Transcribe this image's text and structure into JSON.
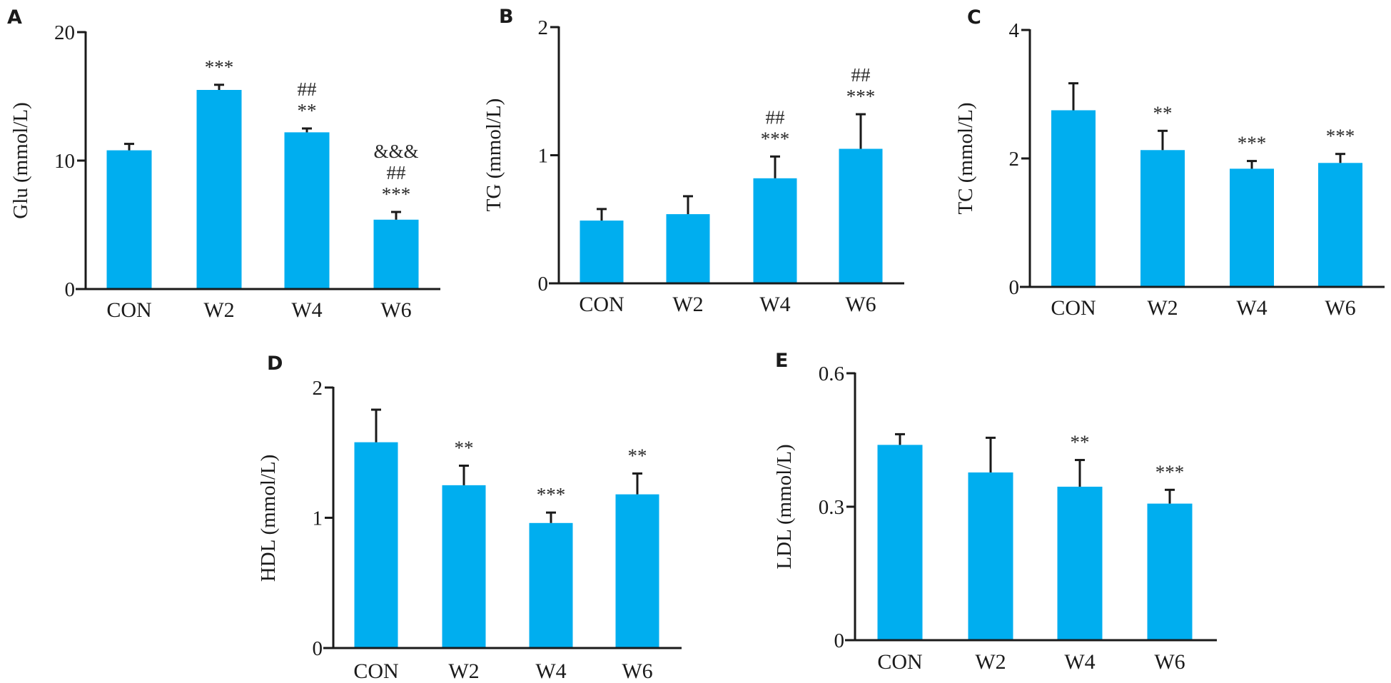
{
  "chart_data": [
    {
      "panel": "A",
      "type": "bar",
      "title": "",
      "xlabel": "",
      "ylabel": "Glu (mmol/L)",
      "categories": [
        "CON",
        "W2",
        "W4",
        "W6"
      ],
      "values": [
        10.8,
        15.5,
        12.2,
        5.4
      ],
      "error_upper": [
        11.3,
        15.9,
        12.5,
        6.0
      ],
      "ylim": [
        0,
        20
      ],
      "yticks": [
        0,
        10,
        20
      ],
      "ytick_labels": [
        "0",
        "10",
        "20"
      ],
      "annotations": [
        [],
        [
          "***"
        ],
        [
          "##",
          "**"
        ],
        [
          "&&&",
          "##",
          "***"
        ]
      ],
      "bar_color": "#00AEEF",
      "grid": false
    },
    {
      "panel": "B",
      "type": "bar",
      "title": "",
      "xlabel": "",
      "ylabel": "TG (mmol/L)",
      "categories": [
        "CON",
        "W2",
        "W4",
        "W6"
      ],
      "values": [
        0.49,
        0.54,
        0.82,
        1.05
      ],
      "error_upper": [
        0.58,
        0.68,
        0.99,
        1.32
      ],
      "ylim": [
        0,
        2
      ],
      "yticks": [
        0,
        1,
        2
      ],
      "ytick_labels": [
        "0",
        "1",
        "2"
      ],
      "annotations": [
        [],
        [],
        [
          "##",
          "***"
        ],
        [
          "##",
          "***"
        ]
      ],
      "bar_color": "#00AEEF",
      "grid": false
    },
    {
      "panel": "C",
      "type": "bar",
      "title": "",
      "xlabel": "",
      "ylabel": "TC (mmol/L)",
      "categories": [
        "CON",
        "W2",
        "W4",
        "W6"
      ],
      "values": [
        2.75,
        2.13,
        1.84,
        1.93
      ],
      "error_upper": [
        3.17,
        2.43,
        1.96,
        2.07
      ],
      "ylim": [
        0,
        4
      ],
      "yticks": [
        0,
        2,
        4
      ],
      "ytick_labels": [
        "0",
        "2",
        "4"
      ],
      "annotations": [
        [],
        [
          "**"
        ],
        [
          "***"
        ],
        [
          "***"
        ]
      ],
      "bar_color": "#00AEEF",
      "grid": false
    },
    {
      "panel": "D",
      "type": "bar",
      "title": "",
      "xlabel": "",
      "ylabel": "HDL (mmol/L)",
      "categories": [
        "CON",
        "W2",
        "W4",
        "W6"
      ],
      "values": [
        1.58,
        1.25,
        0.96,
        1.18
      ],
      "error_upper": [
        1.83,
        1.4,
        1.04,
        1.34
      ],
      "ylim": [
        0,
        2
      ],
      "yticks": [
        0,
        1,
        2
      ],
      "ytick_labels": [
        "0",
        "1",
        "2"
      ],
      "annotations": [
        [],
        [
          "**"
        ],
        [
          "***"
        ],
        [
          "**"
        ]
      ],
      "bar_color": "#00AEEF",
      "grid": false
    },
    {
      "panel": "E",
      "type": "bar",
      "title": "",
      "xlabel": "",
      "ylabel": "LDL (mmol/L)",
      "categories": [
        "CON",
        "W2",
        "W4",
        "W6"
      ],
      "values": [
        0.439,
        0.377,
        0.345,
        0.307
      ],
      "error_upper": [
        0.463,
        0.455,
        0.405,
        0.338
      ],
      "ylim": [
        0,
        0.6
      ],
      "yticks": [
        0,
        0.3,
        0.6
      ],
      "ytick_labels": [
        "0",
        "0.3",
        "0.6"
      ],
      "annotations": [
        [],
        [],
        [
          "**"
        ],
        [
          "***"
        ]
      ],
      "bar_color": "#00AEEF",
      "grid": false
    }
  ]
}
